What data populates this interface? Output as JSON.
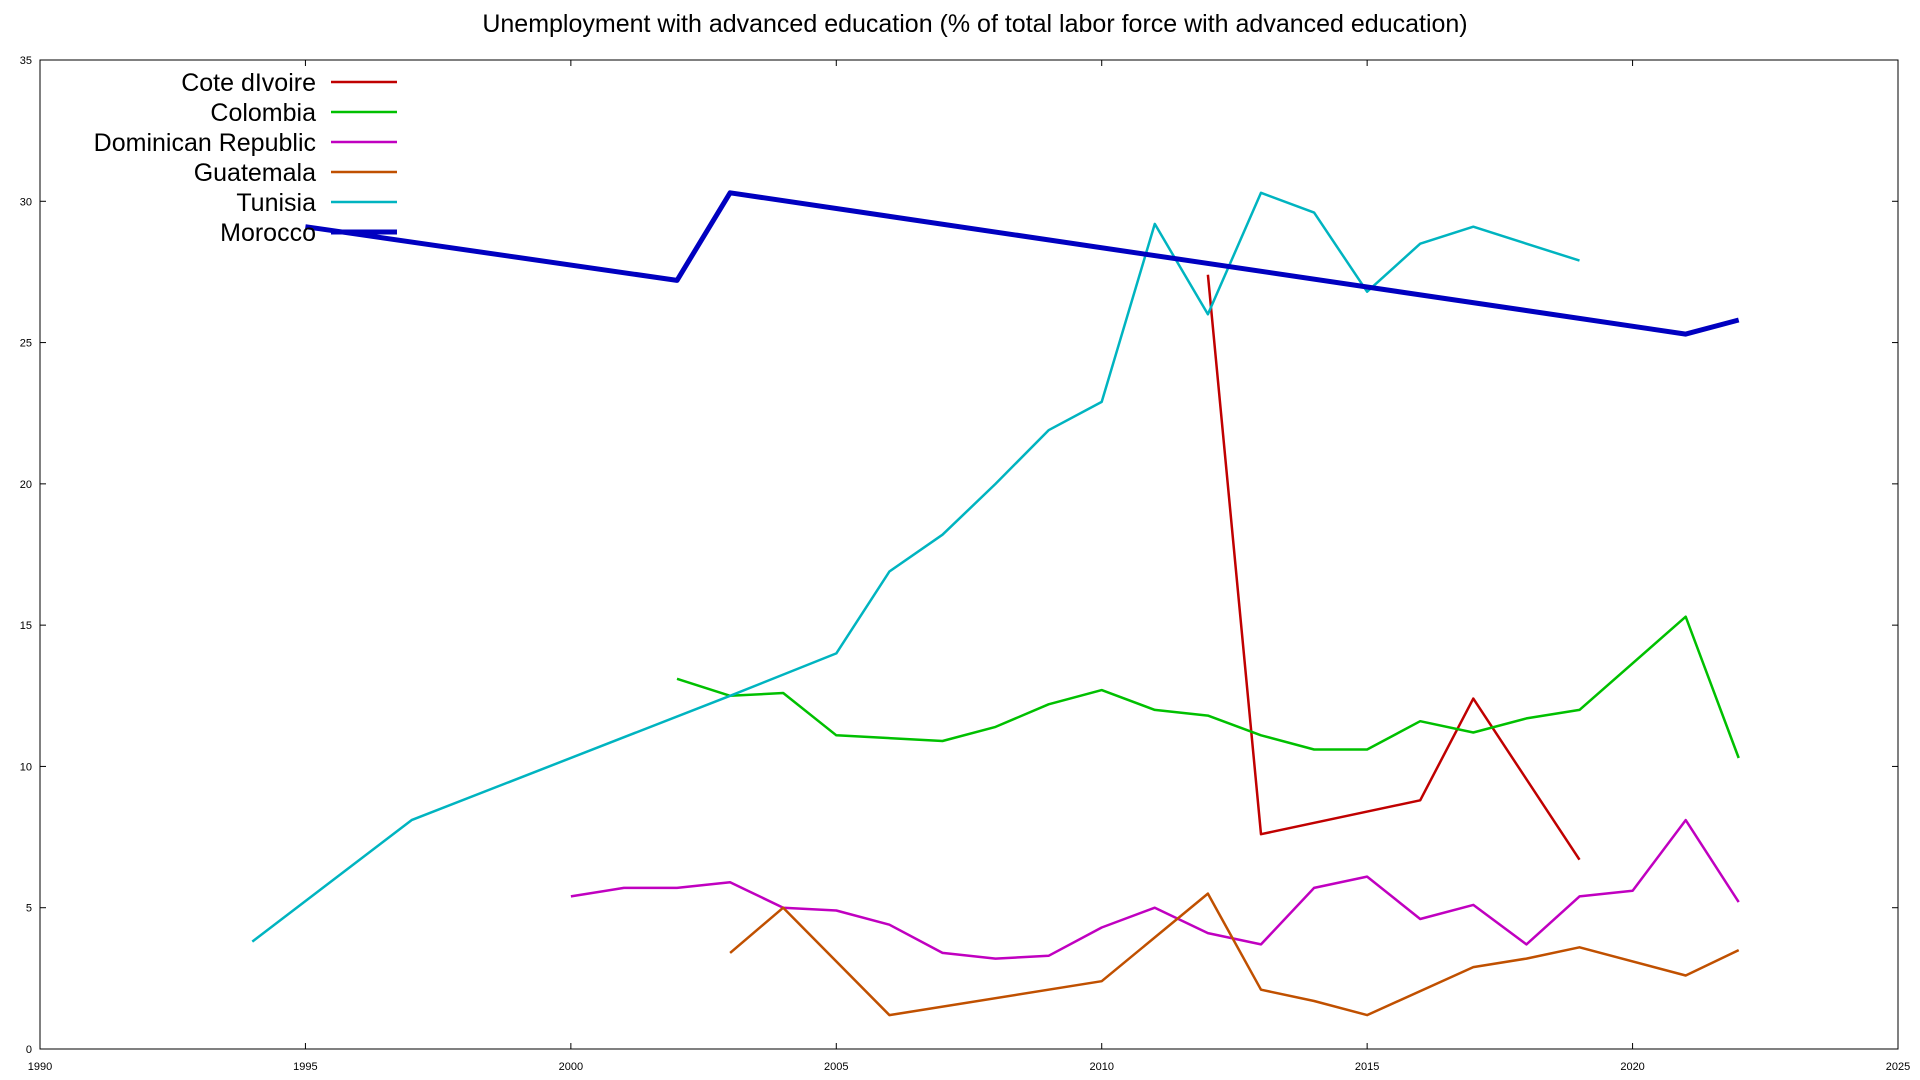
{
  "chart_data": {
    "type": "line",
    "title": "Unemployment with advanced education (% of total labor force with advanced education)",
    "xlabel": "",
    "ylabel": "",
    "xlim": [
      1990,
      2025
    ],
    "ylim": [
      0,
      35
    ],
    "x_ticks": [
      1990,
      1995,
      2000,
      2005,
      2010,
      2015,
      2020,
      2025
    ],
    "y_ticks": [
      0,
      5,
      10,
      15,
      20,
      25,
      30,
      35
    ],
    "grid": false,
    "legend_position": "top-left",
    "series": [
      {
        "name": "Cote dIvoire",
        "color": "#c00000",
        "x": [
          2012,
          2013,
          2016,
          2017,
          2019
        ],
        "y": [
          27.4,
          7.6,
          8.8,
          12.4,
          6.7
        ]
      },
      {
        "name": "Colombia",
        "color": "#00c000",
        "x": [
          2002,
          2003,
          2004,
          2005,
          2007,
          2008,
          2009,
          2010,
          2011,
          2012,
          2013,
          2014,
          2015,
          2016,
          2017,
          2018,
          2019,
          2021,
          2022
        ],
        "y": [
          13.1,
          12.5,
          12.6,
          11.1,
          10.9,
          11.4,
          12.2,
          12.7,
          12.0,
          11.8,
          11.1,
          10.6,
          10.6,
          11.6,
          11.2,
          11.7,
          12.0,
          15.3,
          10.3
        ]
      },
      {
        "name": "Dominican Republic",
        "color": "#c000c0",
        "x": [
          2000,
          2001,
          2002,
          2003,
          2004,
          2005,
          2006,
          2007,
          2008,
          2009,
          2010,
          2011,
          2012,
          2013,
          2014,
          2015,
          2016,
          2017,
          2018,
          2019,
          2020,
          2021,
          2022
        ],
        "y": [
          5.4,
          5.7,
          5.7,
          5.9,
          5.0,
          4.9,
          4.4,
          3.4,
          3.2,
          3.3,
          4.3,
          5.0,
          4.1,
          3.7,
          5.7,
          6.1,
          4.6,
          5.1,
          3.7,
          5.4,
          5.6,
          8.1,
          5.2
        ]
      },
      {
        "name": "Guatemala",
        "color": "#c05000",
        "x": [
          2003,
          2004,
          2006,
          2010,
          2012,
          2013,
          2014,
          2015,
          2017,
          2018,
          2019,
          2021,
          2022
        ],
        "y": [
          3.4,
          5.0,
          1.2,
          2.4,
          5.5,
          2.1,
          1.7,
          1.2,
          2.9,
          3.2,
          3.6,
          2.6,
          3.5
        ]
      },
      {
        "name": "Tunisia",
        "color": "#00b4c0",
        "x": [
          1994,
          1997,
          2003,
          2005,
          2006,
          2007,
          2008,
          2009,
          2010,
          2011,
          2012,
          2013,
          2014,
          2015,
          2016,
          2017,
          2019
        ],
        "y": [
          3.8,
          8.1,
          12.5,
          14.0,
          16.9,
          18.2,
          20.0,
          21.9,
          22.9,
          29.2,
          26.0,
          30.3,
          29.6,
          26.8,
          28.5,
          29.1,
          27.9
        ]
      },
      {
        "name": "Morocco",
        "color": "#0000c0",
        "width": 5,
        "x": [
          1995,
          2002,
          2003,
          2021,
          2022
        ],
        "y": [
          29.1,
          27.2,
          30.3,
          25.3,
          25.8
        ]
      }
    ]
  }
}
